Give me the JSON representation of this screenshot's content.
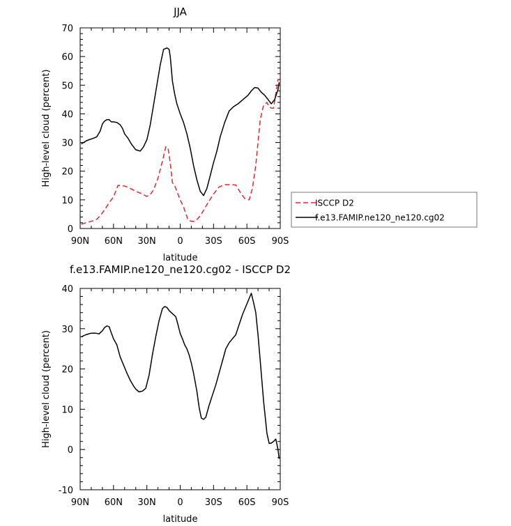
{
  "chart_data": [
    {
      "type": "line",
      "title": "JJA",
      "xlabel": "latitude",
      "ylabel": "High-level cloud (percent)",
      "xlim": [
        -90,
        90
      ],
      "ylim": [
        0,
        70
      ],
      "x_ticks": [
        -90,
        -60,
        -30,
        0,
        30,
        60,
        90
      ],
      "x_tick_labels": [
        "90N",
        "60N",
        "30N",
        "0",
        "30S",
        "60S",
        "90S"
      ],
      "y_ticks": [
        0,
        10,
        20,
        30,
        40,
        50,
        60,
        70
      ],
      "y_tick_labels": [
        "0",
        "10",
        "20",
        "30",
        "40",
        "50",
        "60",
        "70"
      ],
      "legend": "right",
      "grid": false,
      "series": [
        {
          "name": "ISCCP D2",
          "color": "#e8262a",
          "dash": "dashed",
          "x": [
            -89,
            -85,
            -80,
            -75,
            -72,
            -68,
            -64,
            -60,
            -58,
            -56,
            -53,
            -50,
            -45,
            -40,
            -35,
            -30,
            -27,
            -24,
            -20,
            -16,
            -13,
            -11,
            -9,
            -7,
            -5,
            -3,
            0,
            3,
            7,
            10,
            13,
            16,
            19,
            22,
            25,
            30,
            35,
            40,
            45,
            50,
            55,
            58,
            62,
            65,
            68,
            70,
            72,
            75,
            78,
            80,
            82,
            84,
            86,
            88,
            89
          ],
          "y": [
            1.5,
            2,
            2.5,
            3.2,
            4.5,
            6.5,
            9,
            11,
            13,
            15,
            15,
            14.8,
            14,
            13,
            12.2,
            11.2,
            11.8,
            13.5,
            17.5,
            23.5,
            28.5,
            28.2,
            23,
            16,
            15,
            13,
            10,
            7.5,
            3,
            2.5,
            2.5,
            3.5,
            5,
            7,
            9,
            12,
            14.5,
            15.3,
            15.3,
            15.2,
            12,
            10.5,
            10,
            14,
            22,
            30,
            38,
            43,
            44,
            42.5,
            42,
            42,
            47,
            52,
            52
          ]
        },
        {
          "name": "f.e13.FAMIP.ne120_ne120.cg02",
          "color": "#000000",
          "dash": "solid",
          "x": [
            -89,
            -85,
            -82,
            -78,
            -75,
            -72,
            -70,
            -68,
            -66,
            -64,
            -62,
            -60,
            -57,
            -54,
            -52,
            -50,
            -47,
            -44,
            -40,
            -36,
            -33,
            -30,
            -27,
            -24,
            -21,
            -18,
            -15,
            -12,
            -10,
            -9,
            -8,
            -7,
            -5,
            -3,
            0,
            3,
            6,
            9,
            12,
            15,
            18,
            21,
            24,
            27,
            30,
            33,
            36,
            40,
            44,
            48,
            52,
            55,
            58,
            61,
            64,
            67,
            70,
            73,
            76,
            79,
            82,
            85,
            88,
            89
          ],
          "y": [
            29.5,
            30.5,
            31,
            31.5,
            32,
            34,
            36.5,
            37.5,
            38,
            38,
            37.2,
            37.2,
            37,
            36.2,
            35,
            33,
            31.5,
            29.5,
            27.5,
            27,
            28.5,
            31,
            36,
            43,
            50,
            57,
            62.5,
            63,
            62.5,
            60,
            56,
            51.5,
            47,
            43.5,
            40,
            37,
            33,
            28,
            22,
            17,
            13,
            11.5,
            14,
            18.5,
            23,
            27,
            32,
            37,
            41,
            42.5,
            43.5,
            44.5,
            45.5,
            46.5,
            48,
            49.2,
            49,
            47.5,
            46.5,
            45,
            43.5,
            45,
            48.5,
            51
          ]
        }
      ]
    },
    {
      "type": "line",
      "title": "f.e13.FAMIP.ne120_ne120.cg02 - ISCCP D2",
      "xlabel": "latitude",
      "ylabel": "High-level cloud (percent)",
      "xlim": [
        -90,
        90
      ],
      "ylim": [
        -10,
        40
      ],
      "x_ticks": [
        -90,
        -60,
        -30,
        0,
        30,
        60,
        90
      ],
      "x_tick_labels": [
        "90N",
        "60N",
        "30N",
        "0",
        "30S",
        "60S",
        "90S"
      ],
      "y_ticks": [
        -10,
        0,
        10,
        20,
        30,
        40
      ],
      "y_tick_labels": [
        "-10",
        "0",
        "10",
        "20",
        "30",
        "40"
      ],
      "grid": false,
      "series": [
        {
          "color": "#000000",
          "dash": "solid",
          "x": [
            -89,
            -85,
            -80,
            -76,
            -73,
            -70,
            -68,
            -66,
            -64,
            -62,
            -60,
            -57,
            -54,
            -51,
            -48,
            -45,
            -42,
            -40,
            -37,
            -34,
            -31,
            -28,
            -25,
            -22,
            -19,
            -16,
            -14,
            -12,
            -10,
            -8,
            -6,
            -4,
            -2,
            0,
            2,
            4,
            6,
            8,
            10,
            12,
            15,
            17,
            19,
            21,
            23,
            26,
            29,
            32,
            35,
            38,
            41,
            44,
            47,
            50,
            53,
            56,
            59,
            62,
            64,
            66,
            68,
            70,
            72,
            75,
            78,
            80,
            82,
            84,
            86,
            88,
            89
          ],
          "y": [
            28,
            28.5,
            28.9,
            28.9,
            28.7,
            29.5,
            30.3,
            30.7,
            30.5,
            29,
            27.5,
            26,
            23,
            21,
            19,
            17.2,
            15.8,
            15,
            14.3,
            14.5,
            15.2,
            18.5,
            23.5,
            28,
            32,
            35,
            35.5,
            35.3,
            34.5,
            34,
            33.5,
            33,
            31,
            28.8,
            27.5,
            26,
            25,
            23.5,
            21.5,
            19,
            14.5,
            10.5,
            7.8,
            7.5,
            8,
            11,
            13.5,
            16,
            19,
            22,
            25,
            26.5,
            27.5,
            28.5,
            31,
            33.5,
            35.5,
            37.5,
            38.8,
            36.5,
            34,
            28.5,
            22,
            12,
            4,
            1.5,
            1.6,
            2,
            2.6,
            0,
            -2.3
          ]
        }
      ]
    }
  ]
}
